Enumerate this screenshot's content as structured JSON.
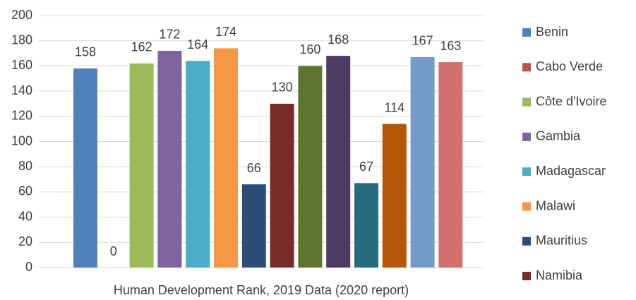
{
  "chart_data": {
    "type": "bar",
    "categories": [
      "Human Development Rank, 2019 Data  (2020 report)"
    ],
    "series": [
      {
        "name": "Benin",
        "color": "#4f81bd",
        "values": [
          158
        ]
      },
      {
        "name": "Cabo Verde",
        "color": "#c0504d",
        "values": [
          0
        ]
      },
      {
        "name": "Côte d'Ivoire",
        "color": "#9bbb59",
        "values": [
          162
        ]
      },
      {
        "name": "Gambia",
        "color": "#8064a2",
        "values": [
          172
        ]
      },
      {
        "name": "Madagascar",
        "color": "#4bacc6",
        "values": [
          164
        ]
      },
      {
        "name": "Malawi",
        "color": "#f79646",
        "values": [
          174
        ]
      },
      {
        "name": "Mauritius",
        "color": "#2c4d75",
        "values": [
          66
        ]
      },
      {
        "name": "Namibia",
        "color": "#772c2a",
        "values": [
          130
        ]
      },
      {
        "color": "#5f7530",
        "values": [
          160
        ]
      },
      {
        "color": "#4d3b62",
        "values": [
          168
        ]
      },
      {
        "color": "#276a7c",
        "values": [
          67
        ]
      },
      {
        "color": "#b65708",
        "values": [
          114
        ]
      },
      {
        "color": "#729aca",
        "values": [
          167
        ]
      },
      {
        "color": "#d0716e",
        "values": [
          163
        ]
      }
    ],
    "ylim": [
      0,
      200
    ],
    "yticks": [
      0,
      20,
      40,
      60,
      80,
      100,
      120,
      140,
      160,
      180,
      200
    ],
    "grid": true,
    "legend": "right"
  }
}
